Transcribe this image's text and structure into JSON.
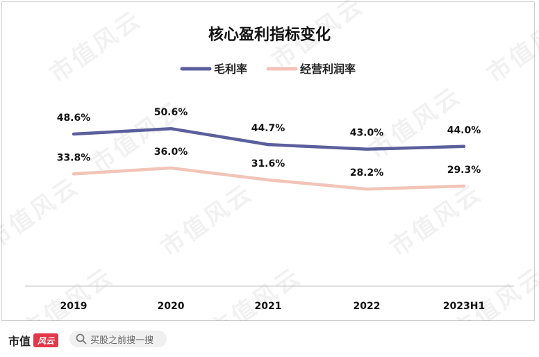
{
  "chart_data": {
    "type": "line",
    "title": "核心盈利指标变化",
    "categories": [
      "2019",
      "2020",
      "2021",
      "2022",
      "2023H1"
    ],
    "series": [
      {
        "name": "毛利率",
        "color": "#5b5f9c",
        "values": [
          48.6,
          50.6,
          44.7,
          43.0,
          44.0
        ],
        "labels": [
          "48.6%",
          "50.6%",
          "44.7%",
          "43.0%",
          "44.0%"
        ]
      },
      {
        "name": "经营利润率",
        "color": "#f2c4b8",
        "values": [
          33.8,
          36.0,
          31.6,
          28.2,
          29.3
        ],
        "labels": [
          "33.8%",
          "36.0%",
          "31.6%",
          "28.2%",
          "29.3%"
        ]
      }
    ],
    "legend": "top-center",
    "grid": false
  },
  "watermark": "市值风云",
  "footer": {
    "brand": "市值",
    "brand_logo": "风云",
    "search_placeholder": "买股之前搜一搜",
    "search_icon": "search-icon"
  }
}
